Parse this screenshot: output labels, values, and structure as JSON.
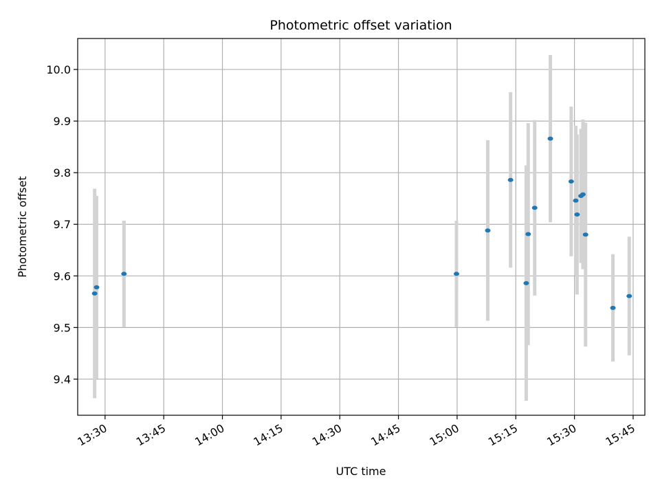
{
  "chart_data": {
    "type": "scatter",
    "title": "Photometric offset variation",
    "xlabel": "UTC time",
    "ylabel": "Photometric offset",
    "grid": true,
    "x_axis": {
      "format": "time HH:MM",
      "range": [
        "13:23:00",
        "15:48:00"
      ],
      "ticks": [
        "13:30",
        "13:45",
        "14:00",
        "14:15",
        "14:30",
        "14:45",
        "15:00",
        "15:15",
        "15:30",
        "15:45"
      ]
    },
    "y_axis": {
      "range": [
        9.33,
        10.06
      ],
      "ticks": [
        "9.4",
        "9.5",
        "9.6",
        "9.7",
        "9.8",
        "9.9",
        "10.0"
      ]
    },
    "colors": {
      "marker": "#1f77b4",
      "errorbar": "#d3d3d3",
      "grid": "#b0b0b0"
    },
    "series": [
      {
        "points": [
          {
            "x": "13:27:20",
            "y": 9.566,
            "err": 0.203
          },
          {
            "x": "13:27:50",
            "y": 9.578,
            "err": 0.177
          },
          {
            "x": "13:34:50",
            "y": 9.604,
            "err": 0.103
          },
          {
            "x": "14:59:50",
            "y": 9.604,
            "err": 0.103
          },
          {
            "x": "15:07:50",
            "y": 9.688,
            "err": 0.175
          },
          {
            "x": "15:13:40",
            "y": 9.786,
            "err": 0.17
          },
          {
            "x": "15:17:40",
            "y": 9.586,
            "err": 0.228
          },
          {
            "x": "15:18:10",
            "y": 9.681,
            "err": 0.215
          },
          {
            "x": "15:19:50",
            "y": 9.732,
            "err": 0.17
          },
          {
            "x": "15:23:50",
            "y": 9.866,
            "err": 0.162
          },
          {
            "x": "15:29:10",
            "y": 9.783,
            "err": 0.145
          },
          {
            "x": "15:30:20",
            "y": 9.746,
            "err": 0.145
          },
          {
            "x": "15:30:40",
            "y": 9.719,
            "err": 0.155
          },
          {
            "x": "15:31:40",
            "y": 9.755,
            "err": 0.13
          },
          {
            "x": "15:32:10",
            "y": 9.758,
            "err": 0.145
          },
          {
            "x": "15:32:50",
            "y": 9.68,
            "err": 0.217
          },
          {
            "x": "15:39:50",
            "y": 9.538,
            "err": 0.104
          },
          {
            "x": "15:44:00",
            "y": 9.561,
            "err": 0.115
          }
        ]
      }
    ]
  }
}
